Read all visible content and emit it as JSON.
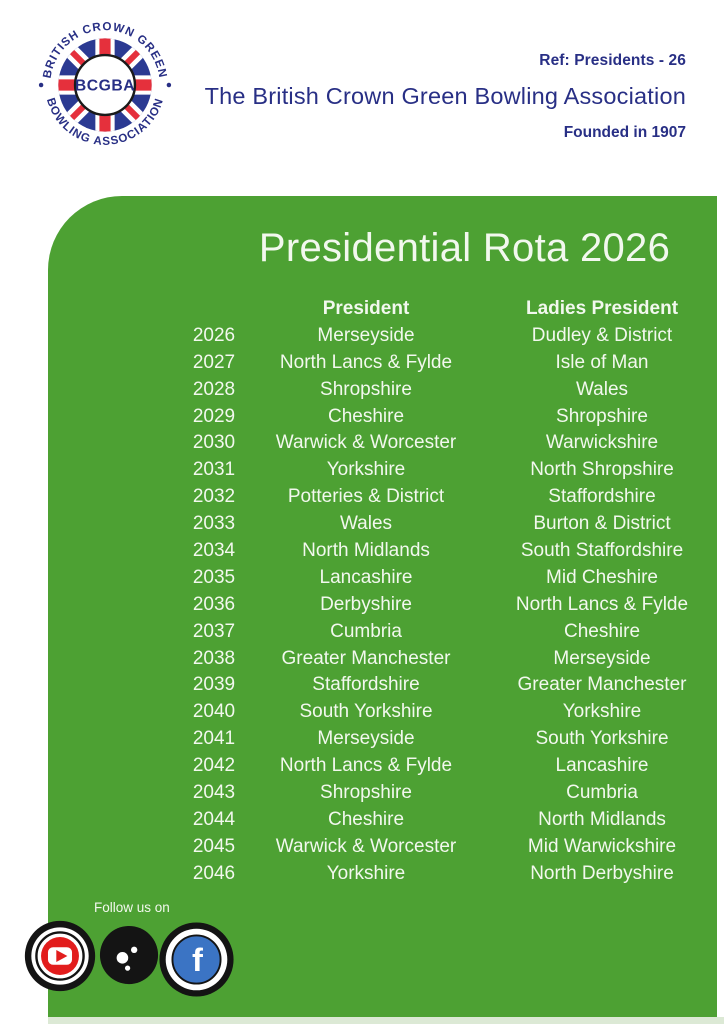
{
  "header": {
    "ref": "Ref: Presidents - 26",
    "org_title": "The British Crown Green Bowling Association",
    "founded": "Founded in 1907"
  },
  "logo": {
    "top_arc": "BRITISH CROWN GREEN",
    "bottom_arc": "BOWLING ASSOCIATION",
    "center": "BCGBA"
  },
  "panel": {
    "title": "Presidential Rota 2026",
    "columns": {
      "president": "President",
      "ladies": "Ladies President"
    },
    "rows": [
      {
        "year": "2026",
        "president": "Merseyside",
        "ladies": "Dudley & District"
      },
      {
        "year": "2027",
        "president": "North Lancs & Fylde",
        "ladies": "Isle of Man"
      },
      {
        "year": "2028",
        "president": "Shropshire",
        "ladies": "Wales"
      },
      {
        "year": "2029",
        "president": "Cheshire",
        "ladies": "Shropshire"
      },
      {
        "year": "2030",
        "president": "Warwick & Worcester",
        "ladies": "Warwickshire"
      },
      {
        "year": "2031",
        "president": "Yorkshire",
        "ladies": "North Shropshire"
      },
      {
        "year": "2032",
        "president": "Potteries & District",
        "ladies": "Staffordshire"
      },
      {
        "year": "2033",
        "president": "Wales",
        "ladies": "Burton & District"
      },
      {
        "year": "2034",
        "president": "North Midlands",
        "ladies": "South Staffordshire"
      },
      {
        "year": "2035",
        "president": "Lancashire",
        "ladies": "Mid Cheshire"
      },
      {
        "year": "2036",
        "president": "Derbyshire",
        "ladies": "North Lancs & Fylde"
      },
      {
        "year": "2037",
        "president": "Cumbria",
        "ladies": "Cheshire"
      },
      {
        "year": "2038",
        "president": "Greater Manchester",
        "ladies": "Merseyside"
      },
      {
        "year": "2039",
        "president": "Staffordshire",
        "ladies": "Greater Manchester"
      },
      {
        "year": "2040",
        "president": "South Yorkshire",
        "ladies": "Yorkshire"
      },
      {
        "year": "2041",
        "president": "Merseyside",
        "ladies": "South Yorkshire"
      },
      {
        "year": "2042",
        "president": "North Lancs & Fylde",
        "ladies": "Lancashire"
      },
      {
        "year": "2043",
        "president": "Shropshire",
        "ladies": "Cumbria"
      },
      {
        "year": "2044",
        "president": "Cheshire",
        "ladies": "North Midlands"
      },
      {
        "year": "2045",
        "president": "Warwick & Worcester",
        "ladies": "Mid Warwickshire"
      },
      {
        "year": "2046",
        "president": "Yorkshire",
        "ladies": "North Derbyshire"
      }
    ]
  },
  "footer": {
    "follow": "Follow us on",
    "icons": [
      "youtube-icon",
      "bowls-ball-icon",
      "facebook-icon"
    ]
  },
  "colors": {
    "green": "#4DA133",
    "strip": "#DCE9D5",
    "navy": "#282F85",
    "flag_blue": "#2B3A92",
    "flag_red": "#E5303C",
    "yt_red": "#E21D1D",
    "fb_blue": "#3B74C4",
    "text_light": "#F2F8EE"
  }
}
